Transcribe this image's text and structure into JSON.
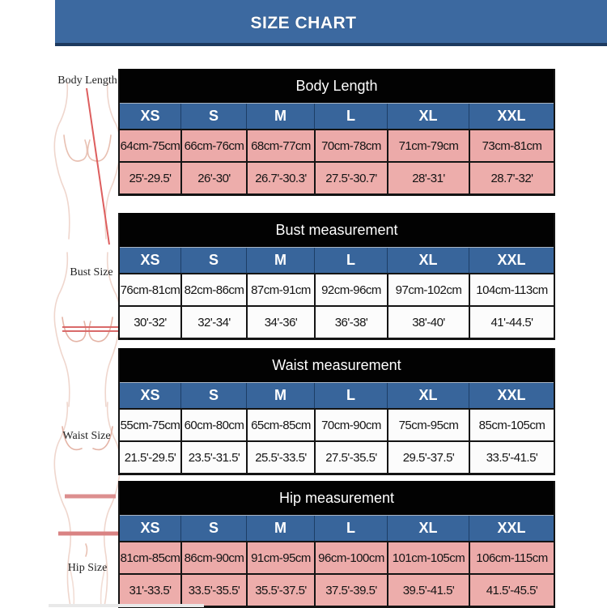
{
  "banner": {
    "title": "SIZE CHART"
  },
  "figure_labels": {
    "body": "Body Length",
    "bust": "Bust Size",
    "waist": "Waist Size",
    "hip": "Hip Size"
  },
  "sizes": [
    "XS",
    "S",
    "M",
    "L",
    "XL",
    "XXL"
  ],
  "tables": [
    {
      "title": "Body Length",
      "row_style": "pink",
      "cm": [
        "64cm-75cm",
        "66cm-76cm",
        "68cm-77cm",
        "70cm-78cm",
        "71cm-79cm",
        "73cm-81cm"
      ],
      "inch": [
        "25'-29.5'",
        "26'-30'",
        "26.7'-30.3'",
        "27.5'-30.7'",
        "28'-31'",
        "28.7'-32'"
      ]
    },
    {
      "title": "Bust measurement",
      "row_style": "white",
      "cm": [
        "76cm-81cm",
        "82cm-86cm",
        "87cm-91cm",
        "92cm-96cm",
        "97cm-102cm",
        "104cm-113cm"
      ],
      "inch": [
        "30'-32'",
        "32'-34'",
        "34'-36'",
        "36'-38'",
        "38'-40'",
        "41'-44.5'"
      ]
    },
    {
      "title": "Waist measurement",
      "row_style": "white",
      "cm": [
        "55cm-75cm",
        "60cm-80cm",
        "65cm-85cm",
        "70cm-90cm",
        "75cm-95cm",
        "85cm-105cm"
      ],
      "inch": [
        "21.5'-29.5'",
        "23.5'-31.5'",
        "25.5'-33.5'",
        "27.5'-35.5'",
        "29.5'-37.5'",
        "33.5'-41.5'"
      ]
    },
    {
      "title": "Hip measurement",
      "row_style": "pink",
      "cm": [
        "81cm-85cm",
        "86cm-90cm",
        "91cm-95cm",
        "96cm-100cm",
        "101cm-105cm",
        "106cm-115cm"
      ],
      "inch": [
        "31'-33.5'",
        "33.5'-35.5'",
        "35.5'-37.5'",
        "37.5'-39.5'",
        "39.5'-41.5'",
        "41.5'-45.5'"
      ]
    }
  ],
  "colors": {
    "banner_blue": "#3c69a0",
    "banner_border": "#1d3a5f",
    "header_black": "#020202",
    "size_row_blue": "#38659b",
    "pink_row": "#ecaaa9",
    "white_row": "#fcfcfc",
    "measure_line_red": "#dd6a6a"
  },
  "chart_data": [
    {
      "type": "table",
      "title": "Body Length",
      "columns": [
        "XS",
        "S",
        "M",
        "L",
        "XL",
        "XXL"
      ],
      "rows": [
        [
          "64cm-75cm",
          "66cm-76cm",
          "68cm-77cm",
          "70cm-78cm",
          "71cm-79cm",
          "73cm-81cm"
        ],
        [
          "25'-29.5'",
          "26'-30'",
          "26.7'-30.3'",
          "27.5'-30.7'",
          "28'-31'",
          "28.7'-32'"
        ]
      ]
    },
    {
      "type": "table",
      "title": "Bust measurement",
      "columns": [
        "XS",
        "S",
        "M",
        "L",
        "XL",
        "XXL"
      ],
      "rows": [
        [
          "76cm-81cm",
          "82cm-86cm",
          "87cm-91cm",
          "92cm-96cm",
          "97cm-102cm",
          "104cm-113cm"
        ],
        [
          "30'-32'",
          "32'-34'",
          "34'-36'",
          "36'-38'",
          "38'-40'",
          "41'-44.5'"
        ]
      ]
    },
    {
      "type": "table",
      "title": "Waist measurement",
      "columns": [
        "XS",
        "S",
        "M",
        "L",
        "XL",
        "XXL"
      ],
      "rows": [
        [
          "55cm-75cm",
          "60cm-80cm",
          "65cm-85cm",
          "70cm-90cm",
          "75cm-95cm",
          "85cm-105cm"
        ],
        [
          "21.5'-29.5'",
          "23.5'-31.5'",
          "25.5'-33.5'",
          "27.5'-35.5'",
          "29.5'-37.5'",
          "33.5'-41.5'"
        ]
      ]
    },
    {
      "type": "table",
      "title": "Hip measurement",
      "columns": [
        "XS",
        "S",
        "M",
        "L",
        "XL",
        "XXL"
      ],
      "rows": [
        [
          "81cm-85cm",
          "86cm-90cm",
          "91cm-95cm",
          "96cm-100cm",
          "101cm-105cm",
          "106cm-115cm"
        ],
        [
          "31'-33.5'",
          "33.5'-35.5'",
          "35.5'-37.5'",
          "37.5'-39.5'",
          "39.5'-41.5'",
          "41.5'-45.5'"
        ]
      ]
    }
  ]
}
